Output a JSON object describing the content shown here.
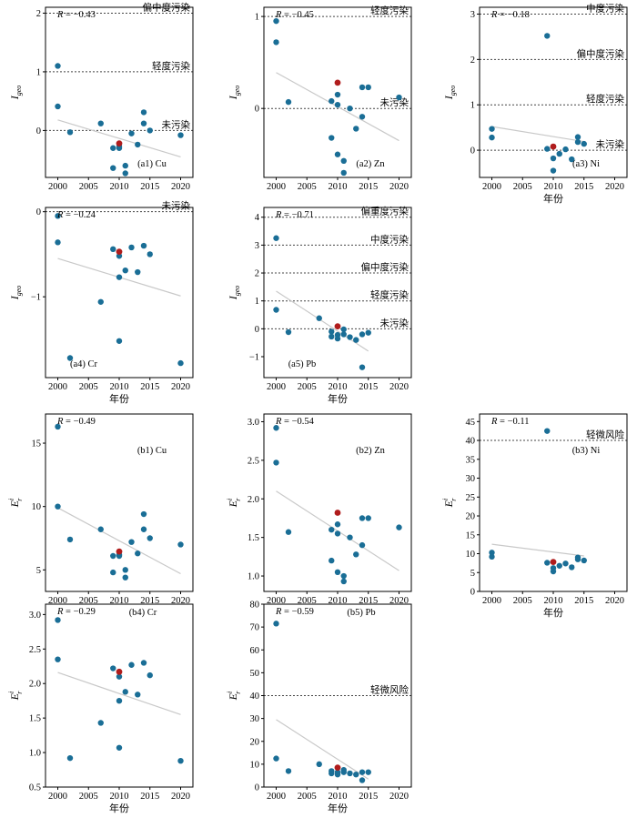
{
  "chart_data": [
    {
      "id": "a1",
      "type": "scatter",
      "panel_label": "(a1) Cu",
      "r_text": "= −0.43",
      "ylabel": "I",
      "ylabel_sub": "geo",
      "xlabel": "",
      "xlim": [
        1998,
        2022
      ],
      "ylim": [
        -0.8,
        2.1
      ],
      "xticks": [
        2000,
        2005,
        2010,
        2015,
        2020
      ],
      "yticks": [
        0,
        1,
        2
      ],
      "ytick_labels": [
        "0",
        "1",
        "2"
      ],
      "levels": [
        {
          "y": 2,
          "label": "偏中度污染"
        },
        {
          "y": 1,
          "label": "轻度污染"
        },
        {
          "y": 0,
          "label": "未污染"
        }
      ],
      "points": [
        [
          2000,
          1.1
        ],
        [
          2000,
          0.41
        ],
        [
          2002,
          -0.03
        ],
        [
          2007,
          0.12
        ],
        [
          2009,
          -0.3
        ],
        [
          2009,
          -0.64
        ],
        [
          2010,
          -0.27
        ],
        [
          2010,
          -0.3
        ],
        [
          2011,
          -0.6
        ],
        [
          2011,
          -0.73
        ],
        [
          2012,
          -0.05
        ],
        [
          2013,
          -0.24
        ],
        [
          2014,
          0.31
        ],
        [
          2014,
          0.12
        ],
        [
          2015,
          0.0
        ],
        [
          2020,
          -0.08
        ]
      ],
      "highlight": [
        [
          2010,
          -0.22
        ]
      ],
      "trend": [
        [
          2000,
          0.18
        ],
        [
          2020,
          -0.45
        ]
      ]
    },
    {
      "id": "a2",
      "type": "scatter",
      "panel_label": "(a2) Zn",
      "r_text": "= −0.45",
      "ylabel": "I",
      "ylabel_sub": "geo",
      "xlabel": "",
      "xlim": [
        1998,
        2022
      ],
      "ylim": [
        -0.75,
        1.1
      ],
      "xticks": [
        2000,
        2005,
        2010,
        2015,
        2020
      ],
      "yticks": [
        0,
        1
      ],
      "ytick_labels": [
        "0",
        "1"
      ],
      "levels": [
        {
          "y": 1,
          "label": "轻度污染"
        },
        {
          "y": 0,
          "label": "未污染"
        }
      ],
      "points": [
        [
          2000,
          0.95
        ],
        [
          2000,
          0.72
        ],
        [
          2002,
          0.07
        ],
        [
          2009,
          0.08
        ],
        [
          2009,
          -0.32
        ],
        [
          2010,
          0.15
        ],
        [
          2010,
          0.04
        ],
        [
          2010,
          -0.5
        ],
        [
          2011,
          -0.57
        ],
        [
          2011,
          -0.7
        ],
        [
          2012,
          0.0
        ],
        [
          2013,
          -0.22
        ],
        [
          2014,
          0.23
        ],
        [
          2014,
          -0.09
        ],
        [
          2015,
          0.23
        ],
        [
          2020,
          0.12
        ]
      ],
      "highlight": [
        [
          2010,
          0.28
        ]
      ],
      "trend": [
        [
          2000,
          0.39
        ],
        [
          2020,
          -0.35
        ]
      ]
    },
    {
      "id": "a3",
      "type": "scatter",
      "panel_label": "(a3) Ni",
      "r_text": "= −0.18",
      "ylabel": "I",
      "ylabel_sub": "geo",
      "xlabel": "年份",
      "xlim": [
        1998,
        2022
      ],
      "ylim": [
        -0.6,
        3.15
      ],
      "xticks": [
        2000,
        2005,
        2010,
        2015,
        2020
      ],
      "yticks": [
        0,
        1,
        2,
        3
      ],
      "ytick_labels": [
        "0",
        "1",
        "2",
        "3"
      ],
      "levels": [
        {
          "y": 3,
          "label": "中度污染"
        },
        {
          "y": 2,
          "label": "偏中度污染"
        },
        {
          "y": 1,
          "label": "轻度污染"
        },
        {
          "y": 0,
          "label": "未污染"
        }
      ],
      "points": [
        [
          2000,
          0.47
        ],
        [
          2000,
          0.28
        ],
        [
          2009,
          2.52
        ],
        [
          2009,
          0.03
        ],
        [
          2010,
          -0.18
        ],
        [
          2010,
          -0.45
        ],
        [
          2011,
          -0.08
        ],
        [
          2012,
          0.02
        ],
        [
          2013,
          -0.2
        ],
        [
          2014,
          0.29
        ],
        [
          2014,
          0.18
        ],
        [
          2015,
          0.14
        ]
      ],
      "highlight": [
        [
          2010,
          0.08
        ]
      ],
      "trend": [
        [
          2000,
          0.52
        ],
        [
          2015,
          0.19
        ]
      ]
    },
    {
      "id": "a4",
      "type": "scatter",
      "panel_label": "(a4) Cr",
      "r_text": "= −0.24",
      "ylabel": "I",
      "ylabel_sub": "geo",
      "xlabel": "年份",
      "xlim": [
        1998,
        2022
      ],
      "ylim": [
        -1.95,
        0.05
      ],
      "xticks": [
        2000,
        2005,
        2010,
        2015,
        2020
      ],
      "yticks": [
        0,
        -1
      ],
      "ytick_labels": [
        "0",
        "−1"
      ],
      "levels": [
        {
          "y": 0,
          "label": "未污染"
        }
      ],
      "points": [
        [
          2000,
          -0.05
        ],
        [
          2000,
          -0.36
        ],
        [
          2002,
          -1.72
        ],
        [
          2007,
          -1.06
        ],
        [
          2009,
          -0.44
        ],
        [
          2010,
          -0.52
        ],
        [
          2010,
          -0.77
        ],
        [
          2010,
          -1.52
        ],
        [
          2011,
          -0.69
        ],
        [
          2012,
          -0.42
        ],
        [
          2013,
          -0.71
        ],
        [
          2014,
          -0.4
        ],
        [
          2015,
          -0.5
        ],
        [
          2020,
          -1.78
        ]
      ],
      "highlight": [
        [
          2010,
          -0.47
        ]
      ],
      "trend": [
        [
          2000,
          -0.55
        ],
        [
          2020,
          -0.99
        ]
      ]
    },
    {
      "id": "a5",
      "type": "scatter",
      "panel_label": "(a5) Pb",
      "r_text": "= −0.71",
      "ylabel": "I",
      "ylabel_sub": "geo",
      "xlabel": "年份",
      "xlim": [
        1998,
        2022
      ],
      "ylim": [
        -1.75,
        4.35
      ],
      "xticks": [
        2000,
        2005,
        2010,
        2015,
        2020
      ],
      "yticks": [
        -1,
        0,
        1,
        2,
        3,
        4
      ],
      "ytick_labels": [
        "−1",
        "0",
        "1",
        "2",
        "3",
        "4"
      ],
      "levels": [
        {
          "y": 4,
          "label": "偏重度污染"
        },
        {
          "y": 3,
          "label": "中度污染"
        },
        {
          "y": 2,
          "label": "偏中度污染"
        },
        {
          "y": 1,
          "label": "轻度污染"
        },
        {
          "y": 0,
          "label": "未污染"
        }
      ],
      "points": [
        [
          2000,
          3.25
        ],
        [
          2000,
          0.68
        ],
        [
          2002,
          -0.12
        ],
        [
          2007,
          0.38
        ],
        [
          2009,
          -0.1
        ],
        [
          2009,
          -0.28
        ],
        [
          2010,
          -0.22
        ],
        [
          2010,
          -0.35
        ],
        [
          2011,
          -0.02
        ],
        [
          2011,
          -0.2
        ],
        [
          2012,
          -0.3
        ],
        [
          2013,
          -0.4
        ],
        [
          2014,
          -0.2
        ],
        [
          2014,
          -1.38
        ],
        [
          2015,
          -0.14
        ]
      ],
      "highlight": [
        [
          2010,
          0.09
        ]
      ],
      "trend": [
        [
          2000,
          1.35
        ],
        [
          2015,
          -0.8
        ]
      ]
    },
    {
      "id": "b1",
      "type": "scatter",
      "panel_label": "(b1) Cu",
      "r_text": "= −0.49",
      "ylabel": "E",
      "ylabel_sub": "r",
      "ylabel_sup": "i",
      "xlabel": "",
      "xlim": [
        1998,
        2022
      ],
      "ylim": [
        3.3,
        17.3
      ],
      "xticks": [
        2000,
        2005,
        2010,
        2015,
        2020
      ],
      "yticks": [
        5,
        10,
        15
      ],
      "ytick_labels": [
        "5",
        "10",
        "15"
      ],
      "levels": [],
      "points": [
        [
          2000,
          16.3
        ],
        [
          2000,
          10.0
        ],
        [
          2002,
          7.4
        ],
        [
          2007,
          8.2
        ],
        [
          2009,
          6.1
        ],
        [
          2009,
          4.8
        ],
        [
          2010,
          6.2
        ],
        [
          2010,
          6.1
        ],
        [
          2011,
          5.0
        ],
        [
          2011,
          4.4
        ],
        [
          2012,
          7.2
        ],
        [
          2013,
          6.3
        ],
        [
          2014,
          9.4
        ],
        [
          2014,
          8.2
        ],
        [
          2015,
          7.5
        ],
        [
          2020,
          7.0
        ]
      ],
      "highlight": [
        [
          2010,
          6.45
        ]
      ],
      "trend": [
        [
          2000,
          9.9
        ],
        [
          2020,
          4.7
        ]
      ]
    },
    {
      "id": "b2",
      "type": "scatter",
      "panel_label": "(b2) Zn",
      "r_text": "= −0.54",
      "ylabel": "E",
      "ylabel_sub": "r",
      "ylabel_sup": "i",
      "xlabel": "",
      "xlim": [
        1998,
        2022
      ],
      "ylim": [
        0.8,
        3.1
      ],
      "xticks": [
        2000,
        2005,
        2010,
        2015,
        2020
      ],
      "yticks": [
        1.0,
        1.5,
        2.0,
        2.5,
        3.0
      ],
      "ytick_labels": [
        "1.0",
        "1.5",
        "2.0",
        "2.5",
        "3.0"
      ],
      "levels": [],
      "points": [
        [
          2000,
          2.92
        ],
        [
          2000,
          2.47
        ],
        [
          2002,
          1.57
        ],
        [
          2009,
          1.6
        ],
        [
          2009,
          1.2
        ],
        [
          2010,
          1.67
        ],
        [
          2010,
          1.55
        ],
        [
          2010,
          1.05
        ],
        [
          2011,
          1.0
        ],
        [
          2011,
          0.93
        ],
        [
          2012,
          1.5
        ],
        [
          2013,
          1.28
        ],
        [
          2014,
          1.75
        ],
        [
          2014,
          1.4
        ],
        [
          2015,
          1.75
        ],
        [
          2020,
          1.63
        ]
      ],
      "highlight": [
        [
          2010,
          1.82
        ]
      ],
      "trend": [
        [
          2000,
          2.1
        ],
        [
          2020,
          1.07
        ]
      ]
    },
    {
      "id": "b3",
      "type": "scatter",
      "panel_label": "(b3) Ni",
      "r_text": "= −0.11",
      "ylabel": "E",
      "ylabel_sub": "r",
      "ylabel_sup": "i",
      "xlabel": "年份",
      "xlim": [
        1998,
        2022
      ],
      "ylim": [
        0,
        47
      ],
      "xticks": [
        2000,
        2005,
        2010,
        2015,
        2020
      ],
      "yticks": [
        0,
        5,
        10,
        15,
        20,
        25,
        30,
        35,
        40,
        45
      ],
      "ytick_labels": [
        "0",
        "5",
        "10",
        "15",
        "20",
        "25",
        "30",
        "35",
        "40",
        "45"
      ],
      "levels": [
        {
          "y": 40,
          "label": "轻微风险"
        }
      ],
      "points": [
        [
          2000,
          10.3
        ],
        [
          2000,
          9.2
        ],
        [
          2009,
          42.5
        ],
        [
          2009,
          7.6
        ],
        [
          2010,
          6.2
        ],
        [
          2010,
          5.3
        ],
        [
          2011,
          6.8
        ],
        [
          2012,
          7.4
        ],
        [
          2013,
          6.4
        ],
        [
          2014,
          9.0
        ],
        [
          2014,
          8.5
        ],
        [
          2015,
          8.2
        ]
      ],
      "highlight": [
        [
          2010,
          7.8
        ]
      ],
      "trend": [
        [
          2000,
          12.5
        ],
        [
          2015,
          9.4
        ]
      ]
    },
    {
      "id": "b4",
      "type": "scatter",
      "panel_label": "(b4) Cr",
      "r_text": "= −0.29",
      "ylabel": "E",
      "ylabel_sub": "r",
      "ylabel_sup": "i",
      "xlabel": "年份",
      "xlim": [
        1998,
        2022
      ],
      "ylim": [
        0.5,
        3.15
      ],
      "xticks": [
        2000,
        2005,
        2010,
        2015,
        2020
      ],
      "yticks": [
        0.5,
        1.0,
        1.5,
        2.0,
        2.5,
        3.0
      ],
      "ytick_labels": [
        "0.5",
        "1.0",
        "1.5",
        "2.0",
        "2.5",
        "3.0"
      ],
      "levels": [],
      "points": [
        [
          2000,
          2.92
        ],
        [
          2000,
          2.35
        ],
        [
          2002,
          0.92
        ],
        [
          2007,
          1.43
        ],
        [
          2009,
          2.22
        ],
        [
          2010,
          2.1
        ],
        [
          2010,
          1.75
        ],
        [
          2010,
          1.07
        ],
        [
          2011,
          1.88
        ],
        [
          2012,
          2.27
        ],
        [
          2013,
          1.84
        ],
        [
          2014,
          2.3
        ],
        [
          2015,
          2.12
        ],
        [
          2020,
          0.88
        ]
      ],
      "highlight": [
        [
          2010,
          2.17
        ]
      ],
      "trend": [
        [
          2000,
          2.16
        ],
        [
          2020,
          1.55
        ]
      ]
    },
    {
      "id": "b5",
      "type": "scatter",
      "panel_label": "(b5) Pb",
      "r_text": "= −0.59",
      "ylabel": "E",
      "ylabel_sub": "r",
      "ylabel_sup": "i",
      "xlabel": "年份",
      "xlim": [
        1998,
        2022
      ],
      "ylim": [
        0,
        80
      ],
      "xticks": [
        2000,
        2005,
        2010,
        2015,
        2020
      ],
      "yticks": [
        0,
        10,
        20,
        30,
        40,
        50,
        60,
        70,
        80
      ],
      "ytick_labels": [
        "0",
        "10",
        "20",
        "30",
        "40",
        "50",
        "60",
        "70",
        "80"
      ],
      "levels": [
        {
          "y": 40,
          "label": "轻微风险"
        }
      ],
      "points": [
        [
          2000,
          71.5
        ],
        [
          2000,
          12.5
        ],
        [
          2002,
          7.0
        ],
        [
          2007,
          10.0
        ],
        [
          2009,
          7.0
        ],
        [
          2009,
          6.0
        ],
        [
          2010,
          6.5
        ],
        [
          2010,
          5.5
        ],
        [
          2011,
          7.5
        ],
        [
          2011,
          6.5
        ],
        [
          2012,
          6.0
        ],
        [
          2013,
          5.5
        ],
        [
          2014,
          6.5
        ],
        [
          2014,
          3.0
        ],
        [
          2015,
          6.5
        ]
      ],
      "highlight": [
        [
          2010,
          8.5
        ]
      ],
      "trend": [
        [
          2000,
          29.5
        ],
        [
          2015,
          3.5
        ]
      ]
    }
  ],
  "style": {
    "point_color": "#1a6e96",
    "highlight_color": "#b01c1c",
    "trend_color": "#c9c9c9",
    "level_line_color": "#444444"
  }
}
